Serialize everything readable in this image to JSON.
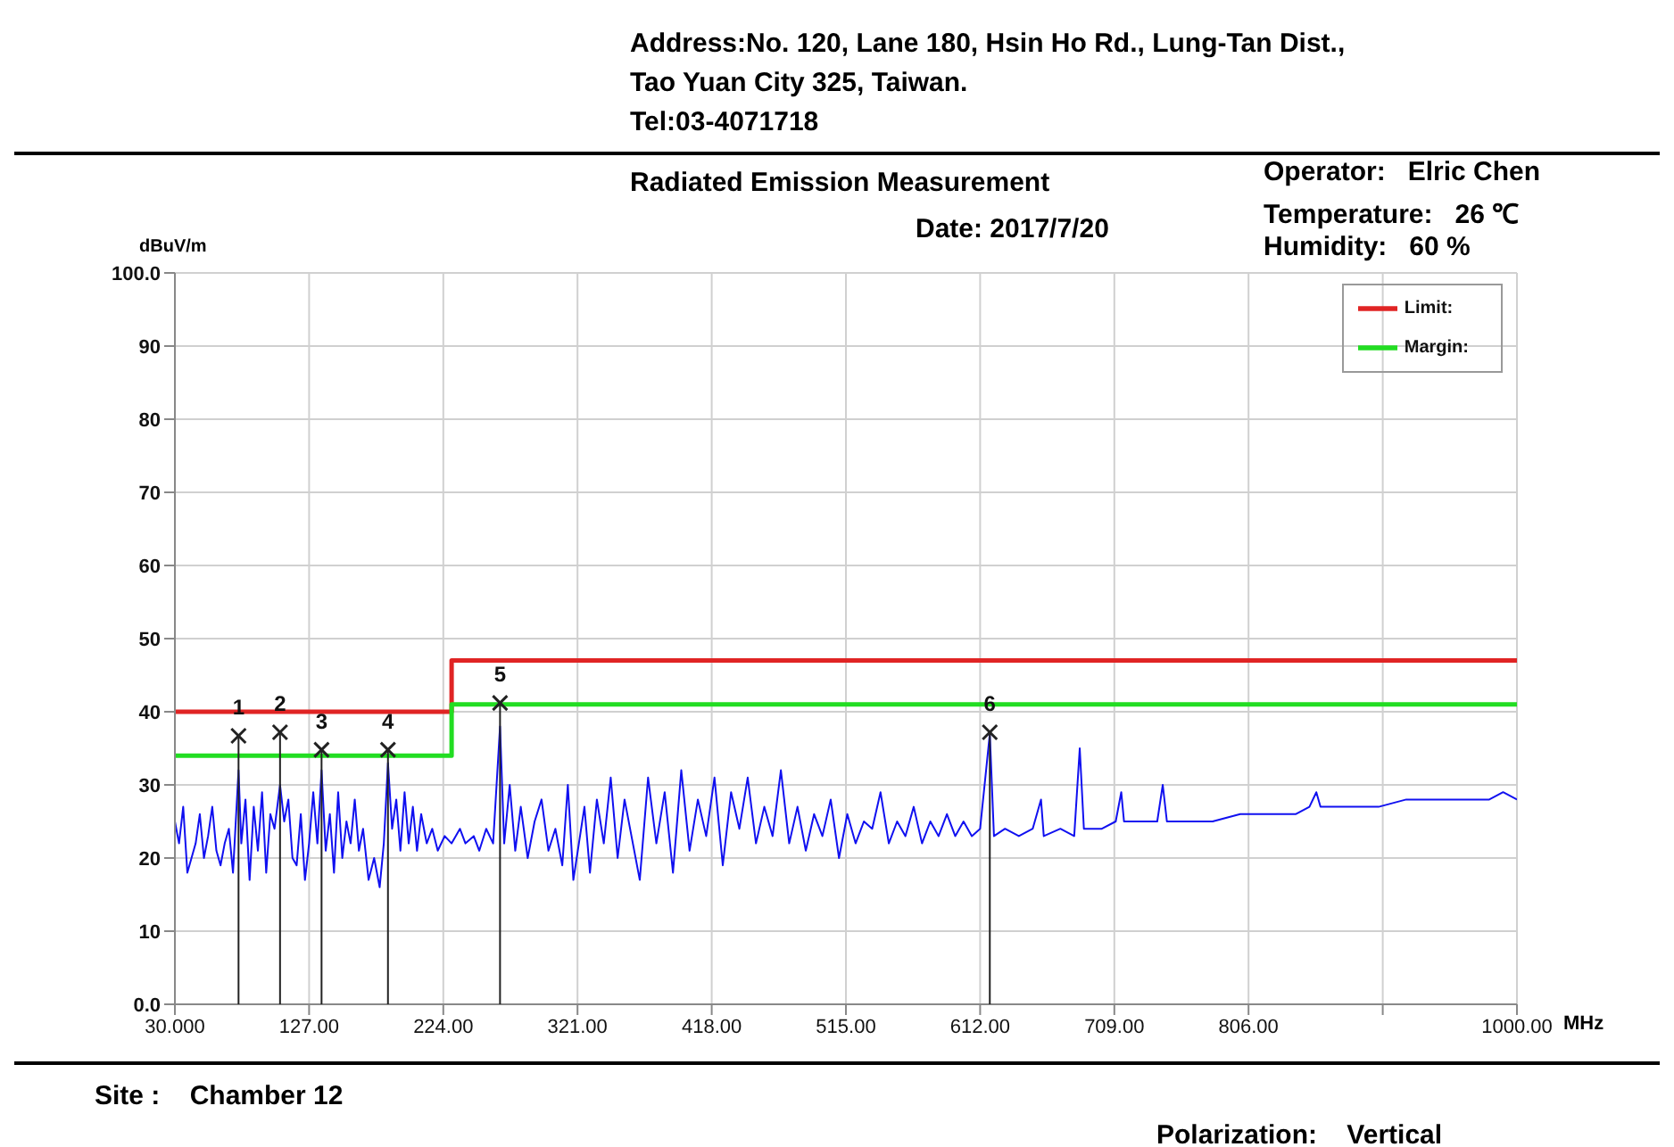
{
  "chart_data": {
    "type": "line",
    "title": "Radiated Emission Measurement",
    "xlabel": "MHz",
    "ylabel": "dBuV/m",
    "annotations": [
      "Address:No. 120, Lane 180, Hsin Ho Rd., Lung-Tan Dist.,",
      "Tao Yuan City 325, Taiwan.",
      "Tel:03-4071718",
      "Date: 2017/7/20",
      "Operator:   Elric Chen",
      "Temperature:   26 ℃",
      "Humidity:   60 %",
      "Site :    Chamber 12",
      "Polarization:    Vertical",
      {
        "text": "1",
        "x": 76,
        "y": 36.7
      },
      {
        "text": "2",
        "x": 106,
        "y": 37.2
      },
      {
        "text": "3",
        "x": 136,
        "y": 34.8
      },
      {
        "text": "4",
        "x": 184,
        "y": 34.8
      },
      {
        "text": "5",
        "x": 265,
        "y": 41.2
      },
      {
        "text": "6",
        "x": 619,
        "y": 37.2
      }
    ],
    "xlim": [
      30,
      1000
    ],
    "ylim": [
      0,
      100
    ],
    "xticks": [
      {
        "value": 30,
        "label": "30.000"
      },
      {
        "value": 127,
        "label": "127.00"
      },
      {
        "value": 224,
        "label": "224.00"
      },
      {
        "value": 321,
        "label": "321.00"
      },
      {
        "value": 418,
        "label": "418.00"
      },
      {
        "value": 515,
        "label": "515.00"
      },
      {
        "value": 612,
        "label": "612.00"
      },
      {
        "value": 709,
        "label": "709.00"
      },
      {
        "value": 806,
        "label": "806.00"
      },
      {
        "value": 903,
        "label": null
      },
      {
        "value": 1000,
        "label": "1000.00"
      }
    ],
    "yticks": [
      {
        "value": 0,
        "label": "0.0"
      },
      10,
      20,
      30,
      40,
      50,
      60,
      70,
      80,
      90,
      {
        "value": 100,
        "label": "100.0"
      }
    ],
    "grid": true,
    "legend": "top right",
    "marker": "none",
    "line_style": "solid",
    "series": [
      {
        "color": "#1010f0",
        "x": [
          30,
          33,
          36,
          39,
          42,
          45,
          48,
          51,
          54,
          57,
          60,
          63,
          66,
          69,
          72,
          76,
          78,
          81,
          84,
          87,
          90,
          93,
          96,
          99,
          102,
          106,
          109,
          112,
          115,
          118,
          121,
          124,
          127,
          130,
          133,
          136,
          139,
          142,
          145,
          148,
          151,
          154,
          157,
          160,
          163,
          166,
          170,
          174,
          178,
          181,
          184,
          187,
          190,
          193,
          196,
          199,
          202,
          205,
          208,
          212,
          216,
          220,
          225,
          230,
          236,
          240,
          246,
          250,
          255,
          260,
          265,
          268,
          272,
          276,
          280,
          285,
          290,
          295,
          300,
          305,
          310,
          314,
          318,
          322,
          326,
          330,
          335,
          340,
          345,
          350,
          355,
          360,
          366,
          372,
          378,
          384,
          390,
          396,
          402,
          408,
          414,
          420,
          426,
          432,
          438,
          444,
          450,
          456,
          462,
          468,
          474,
          480,
          486,
          492,
          498,
          504,
          510,
          516,
          522,
          528,
          534,
          540,
          546,
          552,
          558,
          564,
          570,
          576,
          582,
          588,
          594,
          600,
          606,
          612,
          619,
          622,
          630,
          640,
          650,
          656,
          658,
          670,
          680,
          684,
          687,
          700,
          710,
          714,
          716,
          730,
          740,
          744,
          747,
          760,
          780,
          800,
          820,
          840,
          850,
          855,
          858,
          880,
          900,
          920,
          940,
          960,
          980,
          990,
          1000
        ],
        "values": [
          25,
          22,
          27,
          18,
          20,
          22,
          26,
          20,
          23,
          27,
          21,
          19,
          22,
          24,
          18,
          32,
          22,
          28,
          17,
          27,
          21,
          29,
          18,
          26,
          24,
          30,
          25,
          28,
          20,
          19,
          26,
          17,
          22,
          29,
          22,
          32,
          21,
          26,
          18,
          29,
          20,
          25,
          22,
          28,
          21,
          24,
          17,
          20,
          16,
          22,
          33,
          24,
          28,
          21,
          29,
          22,
          27,
          21,
          26,
          22,
          24,
          21,
          23,
          22,
          24,
          22,
          23,
          21,
          24,
          22,
          38,
          22,
          30,
          21,
          27,
          20,
          25,
          28,
          21,
          24,
          19,
          30,
          17,
          22,
          27,
          18,
          28,
          22,
          31,
          20,
          28,
          23,
          17,
          31,
          22,
          29,
          18,
          32,
          21,
          28,
          23,
          31,
          19,
          29,
          24,
          31,
          22,
          27,
          23,
          32,
          22,
          27,
          21,
          26,
          23,
          28,
          20,
          26,
          22,
          25,
          24,
          29,
          22,
          25,
          23,
          27,
          22,
          25,
          23,
          26,
          23,
          25,
          23,
          24,
          37,
          23,
          24,
          23,
          24,
          28,
          23,
          24,
          23,
          35,
          24,
          24,
          25,
          29,
          25,
          25,
          25,
          30,
          25,
          25,
          25,
          26,
          26,
          26,
          27,
          29,
          27,
          27,
          27,
          28,
          28,
          28,
          28,
          29,
          28
        ]
      },
      {
        "name": "Limit:",
        "color": "#e02424",
        "x": [
          30,
          230,
          230,
          1000
        ],
        "values": [
          40,
          40,
          47,
          47
        ]
      },
      {
        "name": "Margin:",
        "color": "#22dd22",
        "x": [
          30,
          230,
          230,
          1000
        ],
        "values": [
          34,
          34,
          41,
          41
        ]
      },
      {
        "type": "lollipop",
        "marker": "cross",
        "color": "#222222",
        "x": [
          76,
          106,
          136,
          184,
          265,
          619
        ],
        "values": [
          36.7,
          37.2,
          34.8,
          34.8,
          41.2,
          37.2
        ]
      }
    ]
  }
}
